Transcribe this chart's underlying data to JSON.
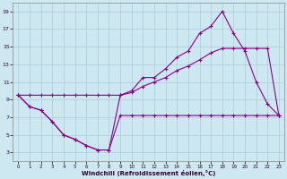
{
  "bg_color": "#cde8f0",
  "grid_color": "#aaccdd",
  "line_color": "#880088",
  "xlabel": "Windchill (Refroidissement éolien,°C)",
  "xlim": [
    -0.5,
    23.5
  ],
  "ylim": [
    2,
    20
  ],
  "yticks": [
    3,
    5,
    7,
    9,
    11,
    13,
    15,
    17,
    19
  ],
  "xticks": [
    0,
    1,
    2,
    3,
    4,
    5,
    6,
    7,
    8,
    9,
    10,
    11,
    12,
    13,
    14,
    15,
    16,
    17,
    18,
    19,
    20,
    21,
    22,
    23
  ],
  "series1_x": [
    0,
    1,
    2,
    3,
    4,
    5,
    6,
    7,
    8,
    9,
    10,
    11,
    12,
    13,
    14,
    15,
    16,
    17,
    18,
    19,
    20,
    21,
    22,
    23
  ],
  "series1_y": [
    9.5,
    8.2,
    7.8,
    6.5,
    5.0,
    4.5,
    3.8,
    3.3,
    3.3,
    7.2,
    7.2,
    7.2,
    7.2,
    7.2,
    7.2,
    7.2,
    7.2,
    7.2,
    7.2,
    7.2,
    7.2,
    7.2,
    7.2,
    7.2
  ],
  "series2_x": [
    0,
    1,
    2,
    3,
    4,
    5,
    6,
    7,
    8,
    9,
    10,
    11,
    12,
    13,
    14,
    15,
    16,
    17,
    18,
    19,
    20,
    21,
    22,
    23
  ],
  "series2_y": [
    9.5,
    8.2,
    7.8,
    6.5,
    5.0,
    4.5,
    3.8,
    3.3,
    3.3,
    9.5,
    10.0,
    11.5,
    11.5,
    12.5,
    13.8,
    14.5,
    16.5,
    17.3,
    19.0,
    16.5,
    14.5,
    11.0,
    8.5,
    7.2
  ],
  "series3_x": [
    0,
    1,
    2,
    3,
    4,
    5,
    6,
    7,
    8,
    9,
    10,
    11,
    12,
    13,
    14,
    15,
    16,
    17,
    18,
    19,
    20,
    21,
    22,
    23
  ],
  "series3_y": [
    9.5,
    9.5,
    9.5,
    9.5,
    9.5,
    9.5,
    9.5,
    9.5,
    9.5,
    9.5,
    9.8,
    10.5,
    11.0,
    11.5,
    12.3,
    12.8,
    13.5,
    14.3,
    14.8,
    14.8,
    14.8,
    14.8,
    14.8,
    7.2
  ]
}
